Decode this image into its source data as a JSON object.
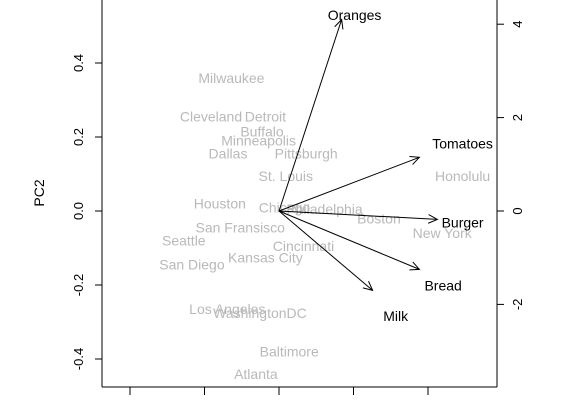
{
  "chart_data": {
    "type": "biplot",
    "ylabel": "PC2",
    "left_axis": {
      "ticks": [
        0.4,
        0.2,
        0.0,
        -0.2,
        -0.4
      ],
      "labels": [
        "0.4",
        "0.2",
        "0.0",
        "-0.2",
        "-0.4"
      ],
      "range": [
        -0.47,
        0.56
      ]
    },
    "right_axis": {
      "ticks": [
        4,
        2,
        0,
        -2
      ],
      "labels": [
        "4",
        "2",
        "0",
        "-2"
      ],
      "range": [
        -4.0,
        4.8
      ]
    },
    "bottom_axis": {
      "tick_count": 5,
      "labels_visible": false
    },
    "grid": false,
    "city_color": "#b9b9b9",
    "arrow_color": "#000000",
    "cities": [
      {
        "name": "Milwaukee",
        "pc1": -0.07,
        "pc2": 0.36
      },
      {
        "name": "Cleveland",
        "pc1": -0.1,
        "pc2": 0.255
      },
      {
        "name": "Detroit",
        "pc1": -0.02,
        "pc2": 0.255
      },
      {
        "name": "Buffalo",
        "pc1": -0.025,
        "pc2": 0.215
      },
      {
        "name": "Minneapolis",
        "pc1": -0.03,
        "pc2": 0.19
      },
      {
        "name": "Dallas",
        "pc1": -0.075,
        "pc2": 0.155
      },
      {
        "name": "Pittsburgh",
        "pc1": 0.04,
        "pc2": 0.155
      },
      {
        "name": "St. Louis",
        "pc1": 0.01,
        "pc2": 0.095
      },
      {
        "name": "Houston",
        "pc1": -0.087,
        "pc2": 0.02
      },
      {
        "name": "Chicago",
        "pc1": 0.008,
        "pc2": 0.01
      },
      {
        "name": "Philadelphia",
        "pc1": 0.067,
        "pc2": 0.005
      },
      {
        "name": "Boston",
        "pc1": 0.147,
        "pc2": -0.02
      },
      {
        "name": "San Fransisco",
        "pc1": -0.057,
        "pc2": -0.045
      },
      {
        "name": "Seattle",
        "pc1": -0.14,
        "pc2": -0.08
      },
      {
        "name": "Cincinnati",
        "pc1": 0.036,
        "pc2": -0.095
      },
      {
        "name": "Kansas City",
        "pc1": -0.02,
        "pc2": -0.125
      },
      {
        "name": "San Diego",
        "pc1": -0.128,
        "pc2": -0.145
      },
      {
        "name": "Honolulu",
        "pc1": 0.27,
        "pc2": 0.095
      },
      {
        "name": "New York",
        "pc1": 0.24,
        "pc2": -0.06
      },
      {
        "name": "Los Angeles",
        "pc1": -0.076,
        "pc2": -0.265
      },
      {
        "name": "WashingtonDC",
        "pc1": -0.028,
        "pc2": -0.275
      },
      {
        "name": "Baltimore",
        "pc1": 0.015,
        "pc2": -0.38
      },
      {
        "name": "Atlanta",
        "pc1": -0.034,
        "pc2": -0.44
      }
    ],
    "variables": [
      {
        "name": "Oranges",
        "pc1": 0.87,
        "pc2": 4.1,
        "label_pc1": 1.05,
        "label_pc2": 4.2
      },
      {
        "name": "Tomatoes",
        "pc1": 1.95,
        "pc2": 1.15,
        "label_pc1": 2.55,
        "label_pc2": 1.45
      },
      {
        "name": "Burger",
        "pc1": 2.2,
        "pc2": -0.18,
        "label_pc1": 2.55,
        "label_pc2": -0.25
      },
      {
        "name": "Bread",
        "pc1": 1.95,
        "pc2": -1.25,
        "label_pc1": 2.28,
        "label_pc2": -1.6
      },
      {
        "name": "Milk",
        "pc1": 1.3,
        "pc2": -1.7,
        "label_pc1": 1.62,
        "label_pc2": -2.25
      }
    ]
  }
}
